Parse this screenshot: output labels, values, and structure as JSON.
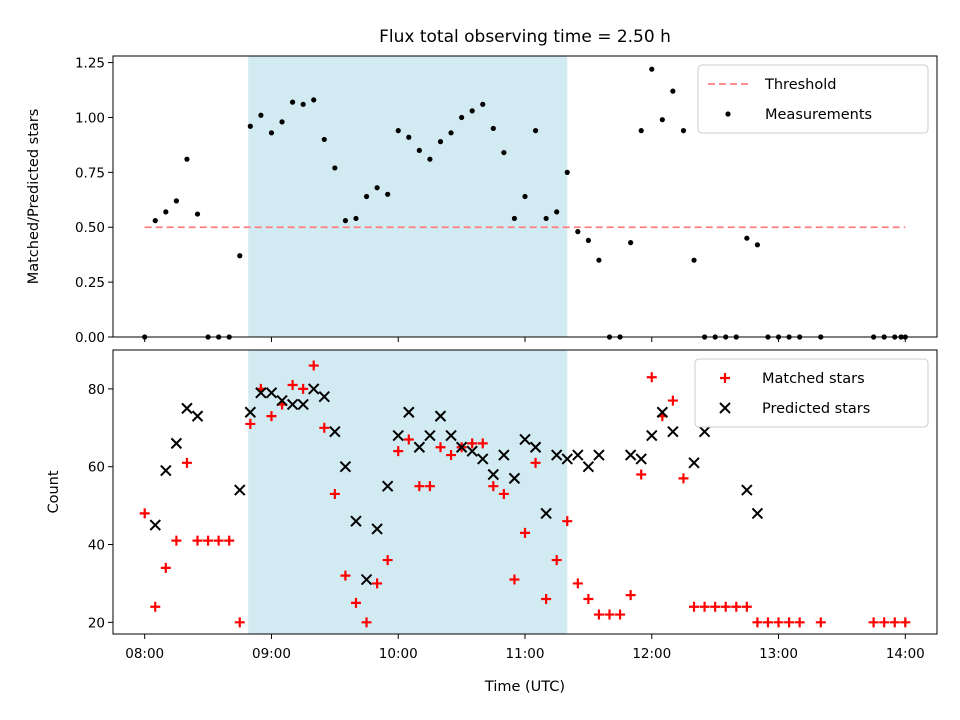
{
  "title": "Flux total observing time = 2.50 h",
  "chart_data": [
    {
      "type": "scatter",
      "ylabel": "Matched/Predicted stars",
      "xlabel": "",
      "xlim": [
        "07:45",
        "14:15"
      ],
      "ylim": [
        0,
        1.28
      ],
      "yticks": [
        "0.00",
        "0.25",
        "0.50",
        "0.75",
        "1.00",
        "1.25"
      ],
      "shaded_region": {
        "from": "08:49",
        "to": "11:20",
        "color": "#add8e6"
      },
      "threshold": {
        "name": "Threshold",
        "value": 0.5,
        "from": "08:00",
        "to": "14:00",
        "color": "#ff7f7f",
        "style": "dashed"
      },
      "series": [
        {
          "name": "Measurements",
          "color": "#000000",
          "marker": "dot",
          "points": [
            [
              "08:00",
              0.0
            ],
            [
              "08:05",
              0.53
            ],
            [
              "08:10",
              0.57
            ],
            [
              "08:15",
              0.62
            ],
            [
              "08:20",
              0.81
            ],
            [
              "08:25",
              0.56
            ],
            [
              "08:30",
              0.0
            ],
            [
              "08:35",
              0.0
            ],
            [
              "08:40",
              0.0
            ],
            [
              "08:45",
              0.37
            ],
            [
              "08:50",
              0.96
            ],
            [
              "08:55",
              1.01
            ],
            [
              "09:00",
              0.93
            ],
            [
              "09:05",
              0.98
            ],
            [
              "09:10",
              1.07
            ],
            [
              "09:15",
              1.06
            ],
            [
              "09:20",
              1.08
            ],
            [
              "09:25",
              0.9
            ],
            [
              "09:30",
              0.77
            ],
            [
              "09:35",
              0.53
            ],
            [
              "09:40",
              0.54
            ],
            [
              "09:45",
              0.64
            ],
            [
              "09:50",
              0.68
            ],
            [
              "09:55",
              0.65
            ],
            [
              "10:00",
              0.94
            ],
            [
              "10:05",
              0.91
            ],
            [
              "10:10",
              0.85
            ],
            [
              "10:15",
              0.81
            ],
            [
              "10:20",
              0.89
            ],
            [
              "10:25",
              0.93
            ],
            [
              "10:30",
              1.0
            ],
            [
              "10:35",
              1.03
            ],
            [
              "10:40",
              1.06
            ],
            [
              "10:45",
              0.95
            ],
            [
              "10:50",
              0.84
            ],
            [
              "10:55",
              0.54
            ],
            [
              "11:00",
              0.64
            ],
            [
              "11:05",
              0.94
            ],
            [
              "11:10",
              0.54
            ],
            [
              "11:15",
              0.57
            ],
            [
              "11:20",
              0.75
            ],
            [
              "11:25",
              0.48
            ],
            [
              "11:30",
              0.44
            ],
            [
              "11:35",
              0.35
            ],
            [
              "11:40",
              0.0
            ],
            [
              "11:45",
              0.0
            ],
            [
              "11:50",
              0.43
            ],
            [
              "11:55",
              0.94
            ],
            [
              "12:00",
              1.22
            ],
            [
              "12:05",
              0.99
            ],
            [
              "12:10",
              1.12
            ],
            [
              "12:15",
              0.94
            ],
            [
              "12:20",
              0.35
            ],
            [
              "12:25",
              0.0
            ],
            [
              "12:30",
              0.0
            ],
            [
              "12:35",
              0.0
            ],
            [
              "12:40",
              0.0
            ],
            [
              "12:45",
              0.45
            ],
            [
              "12:50",
              0.42
            ],
            [
              "12:55",
              0.0
            ],
            [
              "13:00",
              0.0
            ],
            [
              "13:05",
              0.0
            ],
            [
              "13:10",
              0.0
            ],
            [
              "13:20",
              0.0
            ],
            [
              "13:45",
              0.0
            ],
            [
              "13:50",
              0.0
            ],
            [
              "13:55",
              0.0
            ],
            [
              "13:58",
              0.0
            ],
            [
              "14:00",
              0.0
            ]
          ]
        }
      ],
      "legend": {
        "position": "top-right",
        "entries": [
          "Threshold",
          "Measurements"
        ]
      }
    },
    {
      "type": "scatter",
      "ylabel": "Count",
      "xlabel": "Time (UTC)",
      "xlim": [
        "07:45",
        "14:15"
      ],
      "ylim": [
        17,
        90
      ],
      "yticks": [
        "20",
        "40",
        "60",
        "80"
      ],
      "xticks": [
        "08:00",
        "09:00",
        "10:00",
        "11:00",
        "12:00",
        "13:00",
        "14:00"
      ],
      "shaded_region": {
        "from": "08:49",
        "to": "11:20",
        "color": "#add8e6"
      },
      "series": [
        {
          "name": "Matched stars",
          "color": "#ff0000",
          "marker": "plus",
          "points": [
            [
              "08:00",
              48
            ],
            [
              "08:05",
              24
            ],
            [
              "08:10",
              34
            ],
            [
              "08:15",
              41
            ],
            [
              "08:20",
              61
            ],
            [
              "08:25",
              41
            ],
            [
              "08:30",
              41
            ],
            [
              "08:35",
              41
            ],
            [
              "08:40",
              41
            ],
            [
              "08:45",
              20
            ],
            [
              "08:50",
              71
            ],
            [
              "08:55",
              80
            ],
            [
              "09:00",
              73
            ],
            [
              "09:05",
              76
            ],
            [
              "09:10",
              81
            ],
            [
              "09:15",
              80
            ],
            [
              "09:20",
              86
            ],
            [
              "09:25",
              70
            ],
            [
              "09:30",
              53
            ],
            [
              "09:35",
              32
            ],
            [
              "09:40",
              25
            ],
            [
              "09:45",
              20
            ],
            [
              "09:50",
              30
            ],
            [
              "09:55",
              36
            ],
            [
              "10:00",
              64
            ],
            [
              "10:05",
              67
            ],
            [
              "10:10",
              55
            ],
            [
              "10:15",
              55
            ],
            [
              "10:20",
              65
            ],
            [
              "10:25",
              63
            ],
            [
              "10:30",
              65
            ],
            [
              "10:35",
              66
            ],
            [
              "10:40",
              66
            ],
            [
              "10:45",
              55
            ],
            [
              "10:50",
              53
            ],
            [
              "10:55",
              31
            ],
            [
              "11:00",
              43
            ],
            [
              "11:05",
              61
            ],
            [
              "11:10",
              26
            ],
            [
              "11:15",
              36
            ],
            [
              "11:20",
              46
            ],
            [
              "11:25",
              30
            ],
            [
              "11:30",
              26
            ],
            [
              "11:35",
              22
            ],
            [
              "11:40",
              22
            ],
            [
              "11:45",
              22
            ],
            [
              "11:50",
              27
            ],
            [
              "11:55",
              58
            ],
            [
              "12:00",
              83
            ],
            [
              "12:05",
              73
            ],
            [
              "12:10",
              77
            ],
            [
              "12:15",
              57
            ],
            [
              "12:20",
              24
            ],
            [
              "12:25",
              24
            ],
            [
              "12:30",
              24
            ],
            [
              "12:35",
              24
            ],
            [
              "12:40",
              24
            ],
            [
              "12:45",
              24
            ],
            [
              "12:50",
              20
            ],
            [
              "12:55",
              20
            ],
            [
              "13:00",
              20
            ],
            [
              "13:05",
              20
            ],
            [
              "13:10",
              20
            ],
            [
              "13:20",
              20
            ],
            [
              "13:45",
              20
            ],
            [
              "13:50",
              20
            ],
            [
              "13:55",
              20
            ],
            [
              "14:00",
              20
            ]
          ]
        },
        {
          "name": "Predicted stars",
          "color": "#000000",
          "marker": "x",
          "points": [
            [
              "08:05",
              45
            ],
            [
              "08:10",
              59
            ],
            [
              "08:15",
              66
            ],
            [
              "08:20",
              75
            ],
            [
              "08:25",
              73
            ],
            [
              "08:45",
              54
            ],
            [
              "08:50",
              74
            ],
            [
              "08:55",
              79
            ],
            [
              "09:00",
              79
            ],
            [
              "09:05",
              77
            ],
            [
              "09:10",
              76
            ],
            [
              "09:15",
              76
            ],
            [
              "09:20",
              80
            ],
            [
              "09:25",
              78
            ],
            [
              "09:30",
              69
            ],
            [
              "09:35",
              60
            ],
            [
              "09:40",
              46
            ],
            [
              "09:45",
              31
            ],
            [
              "09:50",
              44
            ],
            [
              "09:55",
              55
            ],
            [
              "10:00",
              68
            ],
            [
              "10:05",
              74
            ],
            [
              "10:10",
              65
            ],
            [
              "10:15",
              68
            ],
            [
              "10:20",
              73
            ],
            [
              "10:25",
              68
            ],
            [
              "10:30",
              65
            ],
            [
              "10:35",
              64
            ],
            [
              "10:40",
              62
            ],
            [
              "10:45",
              58
            ],
            [
              "10:50",
              63
            ],
            [
              "10:55",
              57
            ],
            [
              "11:00",
              67
            ],
            [
              "11:05",
              65
            ],
            [
              "11:10",
              48
            ],
            [
              "11:15",
              63
            ],
            [
              "11:20",
              62
            ],
            [
              "11:25",
              63
            ],
            [
              "11:30",
              60
            ],
            [
              "11:35",
              63
            ],
            [
              "11:50",
              63
            ],
            [
              "11:55",
              62
            ],
            [
              "12:00",
              68
            ],
            [
              "12:05",
              74
            ],
            [
              "12:10",
              69
            ],
            [
              "12:20",
              61
            ],
            [
              "12:25",
              69
            ],
            [
              "12:45",
              54
            ],
            [
              "12:50",
              48
            ]
          ]
        }
      ],
      "legend": {
        "position": "top-right",
        "entries": [
          "Matched stars",
          "Predicted stars"
        ]
      }
    }
  ]
}
